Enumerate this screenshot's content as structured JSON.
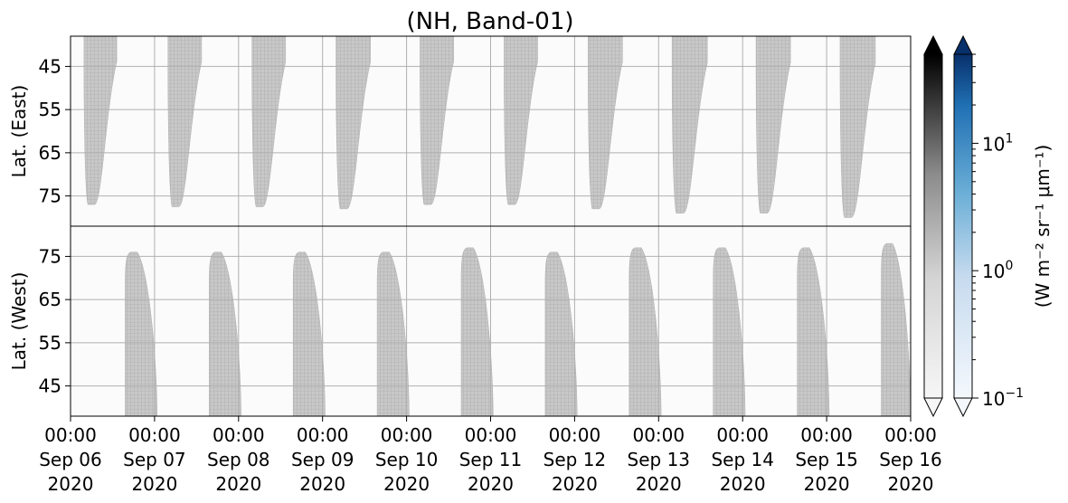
{
  "chart_data": {
    "type": "heatmap",
    "title": "(NH, Band-01)",
    "panels": [
      {
        "name": "East",
        "ylabel": "Lat. (East)",
        "yticks": [
          45,
          55,
          65,
          75
        ],
        "ylim": [
          38,
          82
        ],
        "y_inverted": true,
        "swaths": [
          {
            "day": 0,
            "start": 0.16,
            "end": 0.55,
            "bottom_lat": 77
          },
          {
            "day": 1,
            "start": 1.16,
            "end": 1.56,
            "bottom_lat": 77.5
          },
          {
            "day": 2,
            "start": 2.16,
            "end": 2.56,
            "bottom_lat": 77.5
          },
          {
            "day": 3,
            "start": 3.16,
            "end": 3.57,
            "bottom_lat": 78
          },
          {
            "day": 4,
            "start": 4.16,
            "end": 4.56,
            "bottom_lat": 77
          },
          {
            "day": 5,
            "start": 5.16,
            "end": 5.56,
            "bottom_lat": 77
          },
          {
            "day": 6,
            "start": 6.16,
            "end": 6.57,
            "bottom_lat": 78
          },
          {
            "day": 7,
            "start": 7.16,
            "end": 7.58,
            "bottom_lat": 79
          },
          {
            "day": 8,
            "start": 8.16,
            "end": 8.57,
            "bottom_lat": 79
          },
          {
            "day": 9,
            "start": 9.16,
            "end": 9.58,
            "bottom_lat": 80
          }
        ]
      },
      {
        "name": "West",
        "ylabel": "Lat. (West)",
        "yticks": [
          75,
          65,
          55,
          45
        ],
        "ylim": [
          38,
          82
        ],
        "y_inverted": false,
        "swaths": [
          {
            "day": 0,
            "start": 0.65,
            "end": 1.03,
            "top_lat": 76
          },
          {
            "day": 1,
            "start": 1.65,
            "end": 2.03,
            "top_lat": 76
          },
          {
            "day": 2,
            "start": 2.65,
            "end": 3.03,
            "top_lat": 76
          },
          {
            "day": 3,
            "start": 3.65,
            "end": 4.03,
            "top_lat": 76
          },
          {
            "day": 4,
            "start": 4.65,
            "end": 5.03,
            "top_lat": 77
          },
          {
            "day": 5,
            "start": 5.65,
            "end": 6.03,
            "top_lat": 76
          },
          {
            "day": 6,
            "start": 6.65,
            "end": 7.03,
            "top_lat": 77
          },
          {
            "day": 7,
            "start": 7.65,
            "end": 8.03,
            "top_lat": 77
          },
          {
            "day": 8,
            "start": 8.65,
            "end": 9.03,
            "top_lat": 77
          },
          {
            "day": 9,
            "start": 9.65,
            "end": 10.0,
            "top_lat": 78
          }
        ]
      }
    ],
    "xlim": [
      "2020-09-06 00:00",
      "2020-09-16 00:00"
    ],
    "xtick_labels": [
      [
        "00:00",
        "Sep 06",
        "2020"
      ],
      [
        "00:00",
        "Sep 07",
        "2020"
      ],
      [
        "00:00",
        "Sep 08",
        "2020"
      ],
      [
        "00:00",
        "Sep 09",
        "2020"
      ],
      [
        "00:00",
        "Sep 10",
        "2020"
      ],
      [
        "00:00",
        "Sep 11",
        "2020"
      ],
      [
        "00:00",
        "Sep 12",
        "2020"
      ],
      [
        "00:00",
        "Sep 13",
        "2020"
      ],
      [
        "00:00",
        "Sep 14",
        "2020"
      ],
      [
        "00:00",
        "Sep 15",
        "2020"
      ],
      [
        "00:00",
        "Sep 16",
        "2020"
      ]
    ],
    "grid": true,
    "colorbar": {
      "label": "(W m⁻² sr⁻¹ μm⁻¹)",
      "scale": "log",
      "range": [
        0.1,
        50
      ],
      "extend": "both",
      "ticks": [
        {
          "base": "10",
          "exp": "1",
          "value": 10
        },
        {
          "base": "10",
          "exp": "0",
          "value": 1
        },
        {
          "base": "10",
          "exp": "−1",
          "value": 0.1
        }
      ],
      "colormaps": [
        "Greys",
        "Blues"
      ]
    }
  }
}
